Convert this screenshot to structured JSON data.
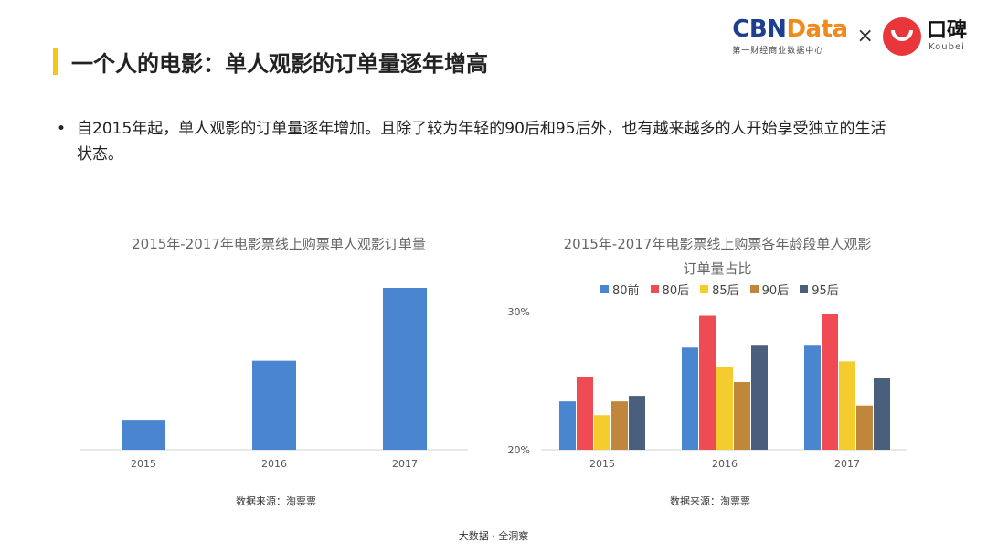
{
  "header": {
    "title": "一个人的电影：单人观影的订单量逐年增高"
  },
  "logos": {
    "cbn_part1": "CBN",
    "cbn_part2": "Data",
    "cbn_sub": "第一财经商业数据中心",
    "times": "×",
    "koubei_cn": "口碑",
    "koubei_en": "Koubei"
  },
  "bullet": {
    "marker": "•",
    "text": "自2015年起，单人观影的订单量逐年增加。且除了较为年轻的90后和95后外，也有越来越多的人开始享受独立的生活状态。"
  },
  "chart_data": [
    {
      "type": "bar",
      "title": "2015年-2017年电影票线上购票单人观影订单量",
      "categories": [
        "2015",
        "2016",
        "2017"
      ],
      "values": [
        18,
        55,
        100
      ],
      "ylim": [
        0,
        100
      ],
      "grid": false,
      "color": "#4a86d0",
      "source": "数据来源：淘票票"
    },
    {
      "type": "bar",
      "title_line1": "2015年-2017年电影票线上购票各年龄段单人观影",
      "title_line2": "订单量占比",
      "categories": [
        "2015",
        "2016",
        "2017"
      ],
      "ylim": [
        20,
        30
      ],
      "yticks": [
        "20%",
        "30%"
      ],
      "ytick_values": [
        20,
        30
      ],
      "legend_position": "top",
      "grid": false,
      "series": [
        {
          "name": "80前",
          "color": "#4a86d0",
          "values": [
            23.5,
            27.4,
            27.6
          ]
        },
        {
          "name": "80后",
          "color": "#ef4b55",
          "values": [
            25.3,
            29.7,
            29.8
          ]
        },
        {
          "name": "85后",
          "color": "#f5cc2e",
          "values": [
            22.5,
            26.0,
            26.4
          ]
        },
        {
          "name": "90后",
          "color": "#c0873c",
          "values": [
            23.5,
            24.9,
            23.2
          ]
        },
        {
          "name": "95后",
          "color": "#4a5f7b",
          "values": [
            23.9,
            27.6,
            25.2
          ]
        }
      ],
      "source": "数据来源：淘票票"
    }
  ],
  "footer": "大数据 · 全洞察"
}
